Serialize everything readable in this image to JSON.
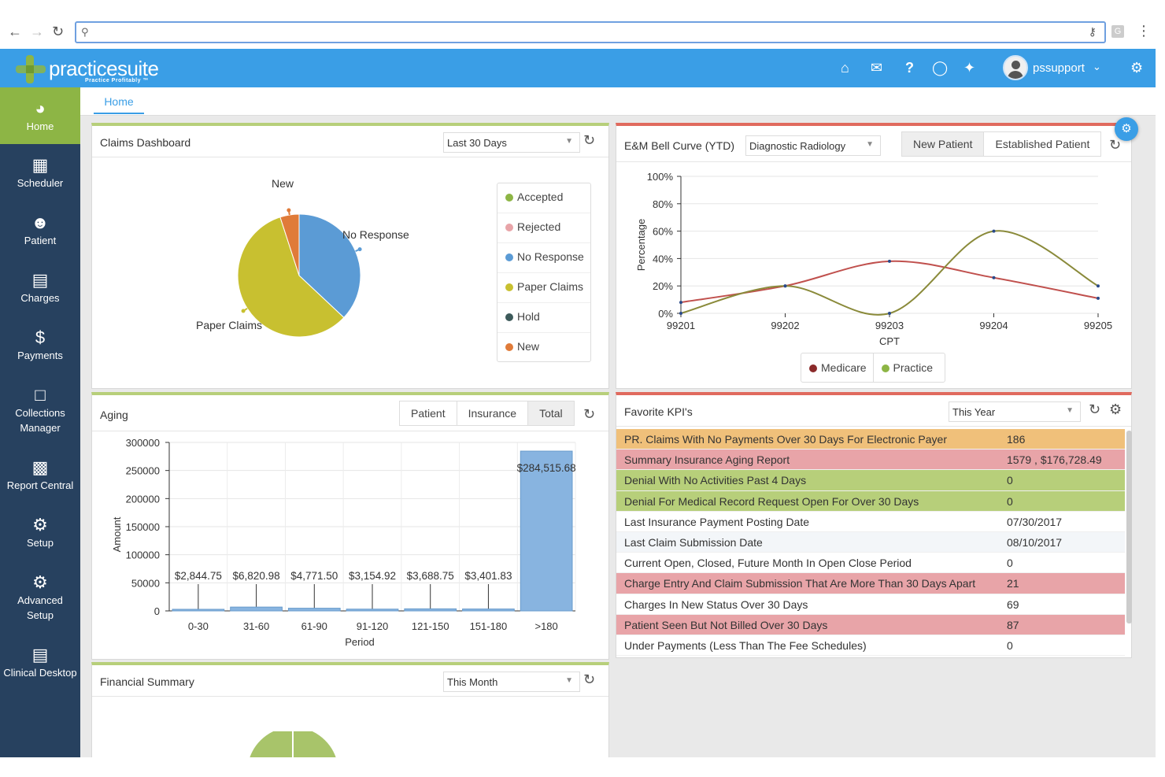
{
  "header": {
    "app_name": "practicesuite",
    "tagline": "Practice Profitably ™",
    "username": "pssupport"
  },
  "colors": {
    "header_blue": "#3a9ee6",
    "sidebar_navy": "#27415f",
    "active_green": "#8db545",
    "kpi_orange": "#f0c07a",
    "kpi_red": "#e8a4a8",
    "kpi_green": "#b7cf7a"
  },
  "sidebar": {
    "items": [
      {
        "label": "Home",
        "icon": "dashboard-icon"
      },
      {
        "label": "Scheduler",
        "icon": "calendar-icon"
      },
      {
        "label": "Patient",
        "icon": "user-icon"
      },
      {
        "label": "Charges",
        "icon": "charges-icon"
      },
      {
        "label": "Payments",
        "icon": "dollar-icon"
      },
      {
        "label": "Collections Manager",
        "icon": "folder-icon"
      },
      {
        "label": "Report Central",
        "icon": "report-icon"
      },
      {
        "label": "Setup",
        "icon": "gear-icon"
      },
      {
        "label": "Advanced Setup",
        "icon": "gears-icon"
      },
      {
        "label": "Clinical Desktop",
        "icon": "clinical-icon"
      }
    ]
  },
  "tabs": {
    "home": "Home"
  },
  "claims": {
    "title": "Claims Dashboard",
    "range": "Last 30 Days",
    "legend": [
      {
        "label": "Accepted",
        "color": "#8db545"
      },
      {
        "label": "Rejected",
        "color": "#e8a4a8"
      },
      {
        "label": "No Response",
        "color": "#5b9bd5"
      },
      {
        "label": "Paper Claims",
        "color": "#c8c030"
      },
      {
        "label": "Hold",
        "color": "#3d5a5a"
      },
      {
        "label": "New",
        "color": "#e07b39"
      }
    ]
  },
  "bell": {
    "title": "E&M Bell Curve (YTD)",
    "specialty": "Diagnostic Radiology",
    "seg_new": "New Patient",
    "seg_established": "Established Patient",
    "legend_medicare": "Medicare",
    "legend_practice": "Practice"
  },
  "aging": {
    "title": "Aging",
    "seg_patient": "Patient",
    "seg_insurance": "Insurance",
    "seg_total": "Total"
  },
  "kpi": {
    "title": "Favorite KPI's",
    "range": "This Year",
    "rows": [
      {
        "name": "PR. Claims With No Payments Over 30 Days For Electronic Payer",
        "value": "186",
        "bg": "#f0c07a"
      },
      {
        "name": "Summary Insurance Aging Report",
        "value": "1579 , $176,728.49",
        "bg": "#e8a4a8"
      },
      {
        "name": "Denial With No Activities Past 4 Days",
        "value": "0",
        "bg": "#b7cf7a"
      },
      {
        "name": "Denial For Medical Record Request Open For Over 30 Days",
        "value": "0",
        "bg": "#b7cf7a"
      },
      {
        "name": "Last Insurance Payment Posting Date",
        "value": "07/30/2017",
        "bg": "#ffffff"
      },
      {
        "name": "Last Claim Submission Date",
        "value": "08/10/2017",
        "bg": "#f3f6f9"
      },
      {
        "name": "Current Open, Closed, Future Month In Open Close Period",
        "value": "0",
        "bg": "#ffffff"
      },
      {
        "name": "Charge Entry And Claim Submission That Are More Than 30 Days Apart",
        "value": "21",
        "bg": "#e8a4a8"
      },
      {
        "name": "Charges In New Status Over 30 Days",
        "value": "69",
        "bg": "#ffffff"
      },
      {
        "name": "Patient Seen But Not Billed Over 30 Days",
        "value": "87",
        "bg": "#e8a4a8"
      },
      {
        "name": "Under Payments (Less Than The Fee Schedules)",
        "value": "0",
        "bg": "#ffffff"
      }
    ]
  },
  "financial": {
    "title": "Financial Summary",
    "range": "This Month"
  },
  "chart_data": [
    {
      "type": "pie",
      "title": "Claims Dashboard",
      "categories": [
        "No Response",
        "Paper Claims",
        "New"
      ],
      "values": [
        37,
        58,
        5
      ],
      "colors": [
        "#5b9bd5",
        "#c8c030",
        "#e07b39"
      ]
    },
    {
      "type": "line",
      "title": "E&M Bell Curve (YTD)",
      "xlabel": "CPT",
      "ylabel": "Percentage",
      "categories": [
        "99201",
        "99202",
        "99203",
        "99204",
        "99205"
      ],
      "y_ticks": [
        "0%",
        "20%",
        "40%",
        "60%",
        "80%",
        "100%"
      ],
      "ylim": [
        0,
        100
      ],
      "series": [
        {
          "name": "Medicare",
          "color": "#c0504d",
          "values": [
            8,
            20,
            38,
            26,
            11
          ]
        },
        {
          "name": "Practice",
          "color": "#8a8a3a",
          "values": [
            0,
            20,
            0,
            60,
            20
          ]
        }
      ]
    },
    {
      "type": "bar",
      "title": "Aging",
      "xlabel": "Period",
      "ylabel": "Amount",
      "categories": [
        "0-30",
        "31-60",
        "61-90",
        "91-120",
        "121-150",
        "151-180",
        ">180"
      ],
      "values": [
        2844.75,
        6820.98,
        4771.5,
        3154.92,
        3688.75,
        3401.83,
        284515.68
      ],
      "labels": [
        "$2,844.75",
        "$6,820.98",
        "$4,771.50",
        "$3,154.92",
        "$3,688.75",
        "$3,401.83",
        "$284,515.68"
      ],
      "y_ticks": [
        "0",
        "50000",
        "100000",
        "150000",
        "200000",
        "250000",
        "300000"
      ],
      "ylim": [
        0,
        300000
      ]
    }
  ]
}
